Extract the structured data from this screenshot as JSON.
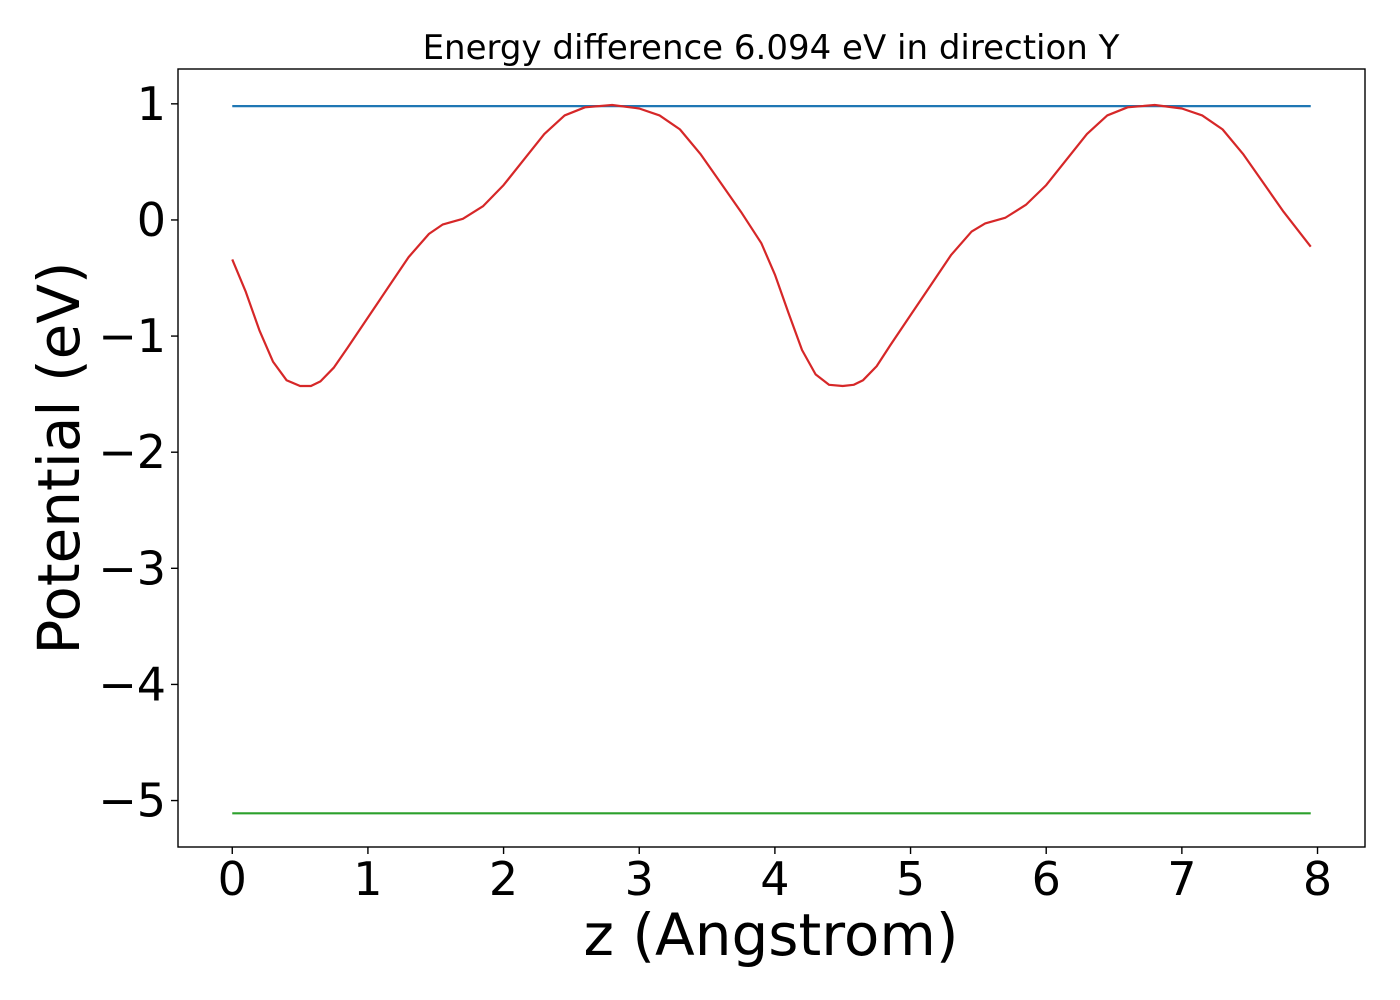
{
  "chart_data": {
    "type": "line",
    "title": "Energy difference 6.094 eV in direction Y",
    "xlabel": "z (Angstrom)",
    "ylabel": "Potential (eV)",
    "xlim": [
      -0.4,
      8.35
    ],
    "ylim": [
      -5.4,
      1.3
    ],
    "x_ticks": [
      0,
      1,
      2,
      3,
      4,
      5,
      6,
      7,
      8
    ],
    "x_tick_labels": [
      "0",
      "1",
      "2",
      "3",
      "4",
      "5",
      "6",
      "7",
      "8"
    ],
    "y_ticks": [
      1,
      0,
      -1,
      -2,
      -3,
      -4,
      -5
    ],
    "y_tick_labels": [
      "1",
      "0",
      "−1",
      "−2",
      "−3",
      "−4",
      "−5"
    ],
    "grid": false,
    "legend": "none",
    "series": [
      {
        "color": "#1f77b4",
        "x": [
          0,
          7.95
        ],
        "values": [
          0.98,
          0.98
        ]
      },
      {
        "color": "#d62728",
        "x": [
          0,
          0.1,
          0.2,
          0.3,
          0.4,
          0.5,
          0.58,
          0.65,
          0.75,
          0.85,
          1.0,
          1.15,
          1.3,
          1.45,
          1.55,
          1.7,
          1.85,
          2.0,
          2.15,
          2.3,
          2.45,
          2.6,
          2.8,
          3.0,
          3.15,
          3.3,
          3.45,
          3.6,
          3.75,
          3.9,
          4.0,
          4.1,
          4.2,
          4.3,
          4.4,
          4.5,
          4.58,
          4.65,
          4.75,
          4.85,
          5.0,
          5.15,
          5.3,
          5.45,
          5.55,
          5.7,
          5.85,
          6.0,
          6.15,
          6.3,
          6.45,
          6.6,
          6.8,
          7.0,
          7.15,
          7.3,
          7.45,
          7.6,
          7.75,
          7.95
        ],
        "values": [
          -0.34,
          -0.62,
          -0.95,
          -1.22,
          -1.38,
          -1.43,
          -1.43,
          -1.39,
          -1.27,
          -1.1,
          -0.84,
          -0.58,
          -0.32,
          -0.12,
          -0.04,
          0.01,
          0.12,
          0.3,
          0.52,
          0.74,
          0.9,
          0.97,
          0.99,
          0.96,
          0.9,
          0.78,
          0.57,
          0.32,
          0.07,
          -0.2,
          -0.47,
          -0.8,
          -1.12,
          -1.33,
          -1.42,
          -1.43,
          -1.42,
          -1.38,
          -1.26,
          -1.08,
          -0.82,
          -0.56,
          -0.3,
          -0.1,
          -0.03,
          0.02,
          0.13,
          0.3,
          0.52,
          0.74,
          0.9,
          0.97,
          0.99,
          0.96,
          0.9,
          0.78,
          0.57,
          0.32,
          0.07,
          -0.23
        ]
      },
      {
        "color": "#2ca02c",
        "x": [
          0,
          7.95
        ],
        "values": [
          -5.11,
          -5.11
        ]
      }
    ]
  }
}
